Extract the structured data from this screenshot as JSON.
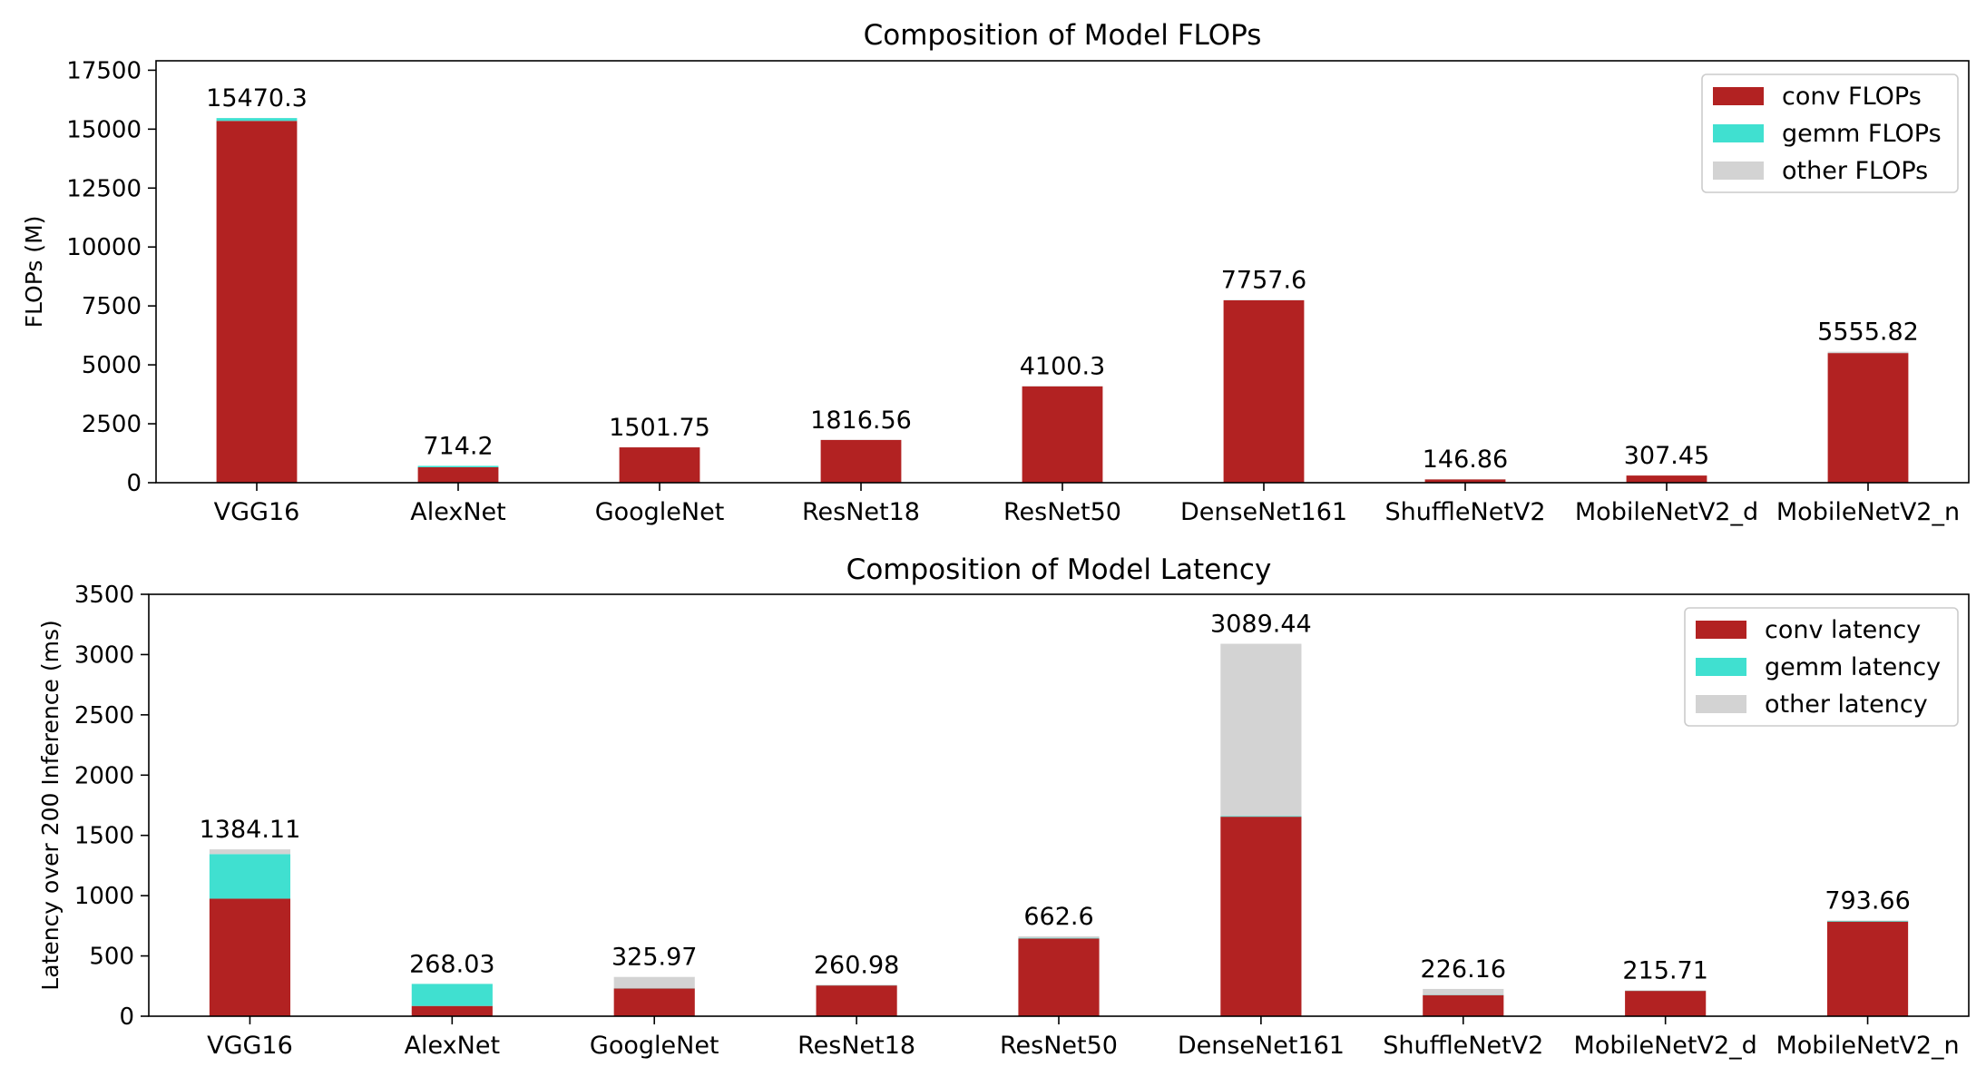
{
  "colors": {
    "conv": "#b22222",
    "gemm": "#40e0d0",
    "other": "#d3d3d3"
  },
  "chart_data": [
    {
      "type": "bar",
      "stacked": true,
      "title": "Composition of Model FLOPs",
      "xlabel": "",
      "ylabel": "FLOPs (M)",
      "ylim": [
        0,
        17900
      ],
      "yticks": [
        0,
        2500,
        5000,
        7500,
        10000,
        12500,
        15000,
        17500
      ],
      "legend_position": "top-right",
      "categories": [
        "VGG16",
        "AlexNet",
        "GoogleNet",
        "ResNet18",
        "ResNet50",
        "DenseNet161",
        "ShuffleNetV2",
        "MobileNetV2_d",
        "MobileNetV2_n"
      ],
      "totals": [
        "15470.3",
        "714.2",
        "1501.75",
        "1816.56",
        "4100.3",
        "7757.6",
        "146.86",
        "307.45",
        "5555.82"
      ],
      "series": [
        {
          "name": "conv FLOPs",
          "color_key": "conv",
          "values": [
            15350,
            655,
            1500,
            1814,
            4090,
            7740,
            140,
            305,
            5500
          ]
        },
        {
          "name": "gemm FLOPs",
          "color_key": "gemm",
          "values": [
            120,
            59,
            1,
            1,
            2,
            2,
            1,
            1,
            1
          ]
        },
        {
          "name": "other FLOPs",
          "color_key": "other",
          "values": [
            0.3,
            0.2,
            0.75,
            1.56,
            8.3,
            15.6,
            5.86,
            1.45,
            54.82
          ]
        }
      ]
    },
    {
      "type": "bar",
      "stacked": true,
      "title": "Composition of Model Latency",
      "xlabel": "",
      "ylabel": "Latency over 200 Inference (ms)",
      "ylim": [
        0,
        3500
      ],
      "yticks": [
        0,
        500,
        1000,
        1500,
        2000,
        2500,
        3000,
        3500
      ],
      "legend_position": "top-right",
      "categories": [
        "VGG16",
        "AlexNet",
        "GoogleNet",
        "ResNet18",
        "ResNet50",
        "DenseNet161",
        "ShuffleNetV2",
        "MobileNetV2_d",
        "MobileNetV2_n"
      ],
      "totals": [
        "1384.11",
        "268.03",
        "325.97",
        "260.98",
        "662.6",
        "3089.44",
        "226.16",
        "215.71",
        "793.66"
      ],
      "series": [
        {
          "name": "conv latency",
          "color_key": "conv",
          "values": [
            975,
            85,
            230,
            255,
            645,
            1655,
            175,
            210,
            785
          ]
        },
        {
          "name": "gemm latency",
          "color_key": "gemm",
          "values": [
            370,
            183,
            2,
            2,
            5,
            5,
            2,
            2,
            5
          ]
        },
        {
          "name": "other latency",
          "color_key": "other",
          "values": [
            39.11,
            0.03,
            93.97,
            3.98,
            12.6,
            1429.44,
            49.16,
            3.71,
            3.66
          ]
        }
      ]
    }
  ]
}
